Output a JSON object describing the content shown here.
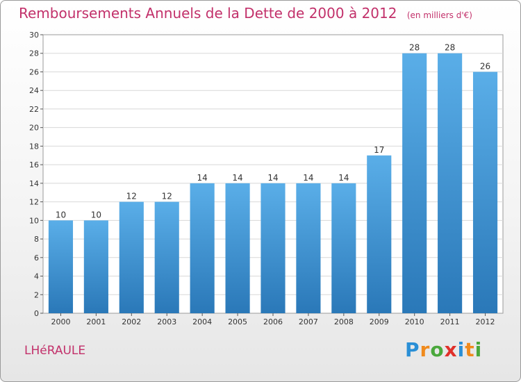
{
  "header": {
    "title": "Remboursements Annuels de la Dette de 2000 à 2012",
    "subtitle": "(en milliers d'€)"
  },
  "footer": {
    "place": "LHéRAULE",
    "logo": [
      "P",
      "r",
      "o",
      "x",
      "i",
      "t",
      "i"
    ],
    "logo_colors": [
      "#2a8fd6",
      "#f08a1c",
      "#4aa83c",
      "#e0302a",
      "#2a8fd6",
      "#f08a1c",
      "#4aa83c"
    ]
  },
  "chart_data": {
    "type": "bar",
    "title": "Remboursements Annuels de la Dette de 2000 à 2012",
    "subtitle": "(en milliers d'€)",
    "categories": [
      "2000",
      "2001",
      "2002",
      "2003",
      "2004",
      "2005",
      "2006",
      "2007",
      "2008",
      "2009",
      "2010",
      "2011",
      "2012"
    ],
    "values": [
      10,
      10,
      12,
      12,
      14,
      14,
      14,
      14,
      14,
      17,
      28,
      28,
      26
    ],
    "ylim": [
      0,
      30
    ],
    "yticks": [
      0,
      2,
      4,
      6,
      8,
      10,
      12,
      14,
      16,
      18,
      20,
      22,
      24,
      26,
      28,
      30
    ],
    "grid": true,
    "bar_color_top": "#5aaee8",
    "bar_color_bottom": "#2a78b8"
  }
}
